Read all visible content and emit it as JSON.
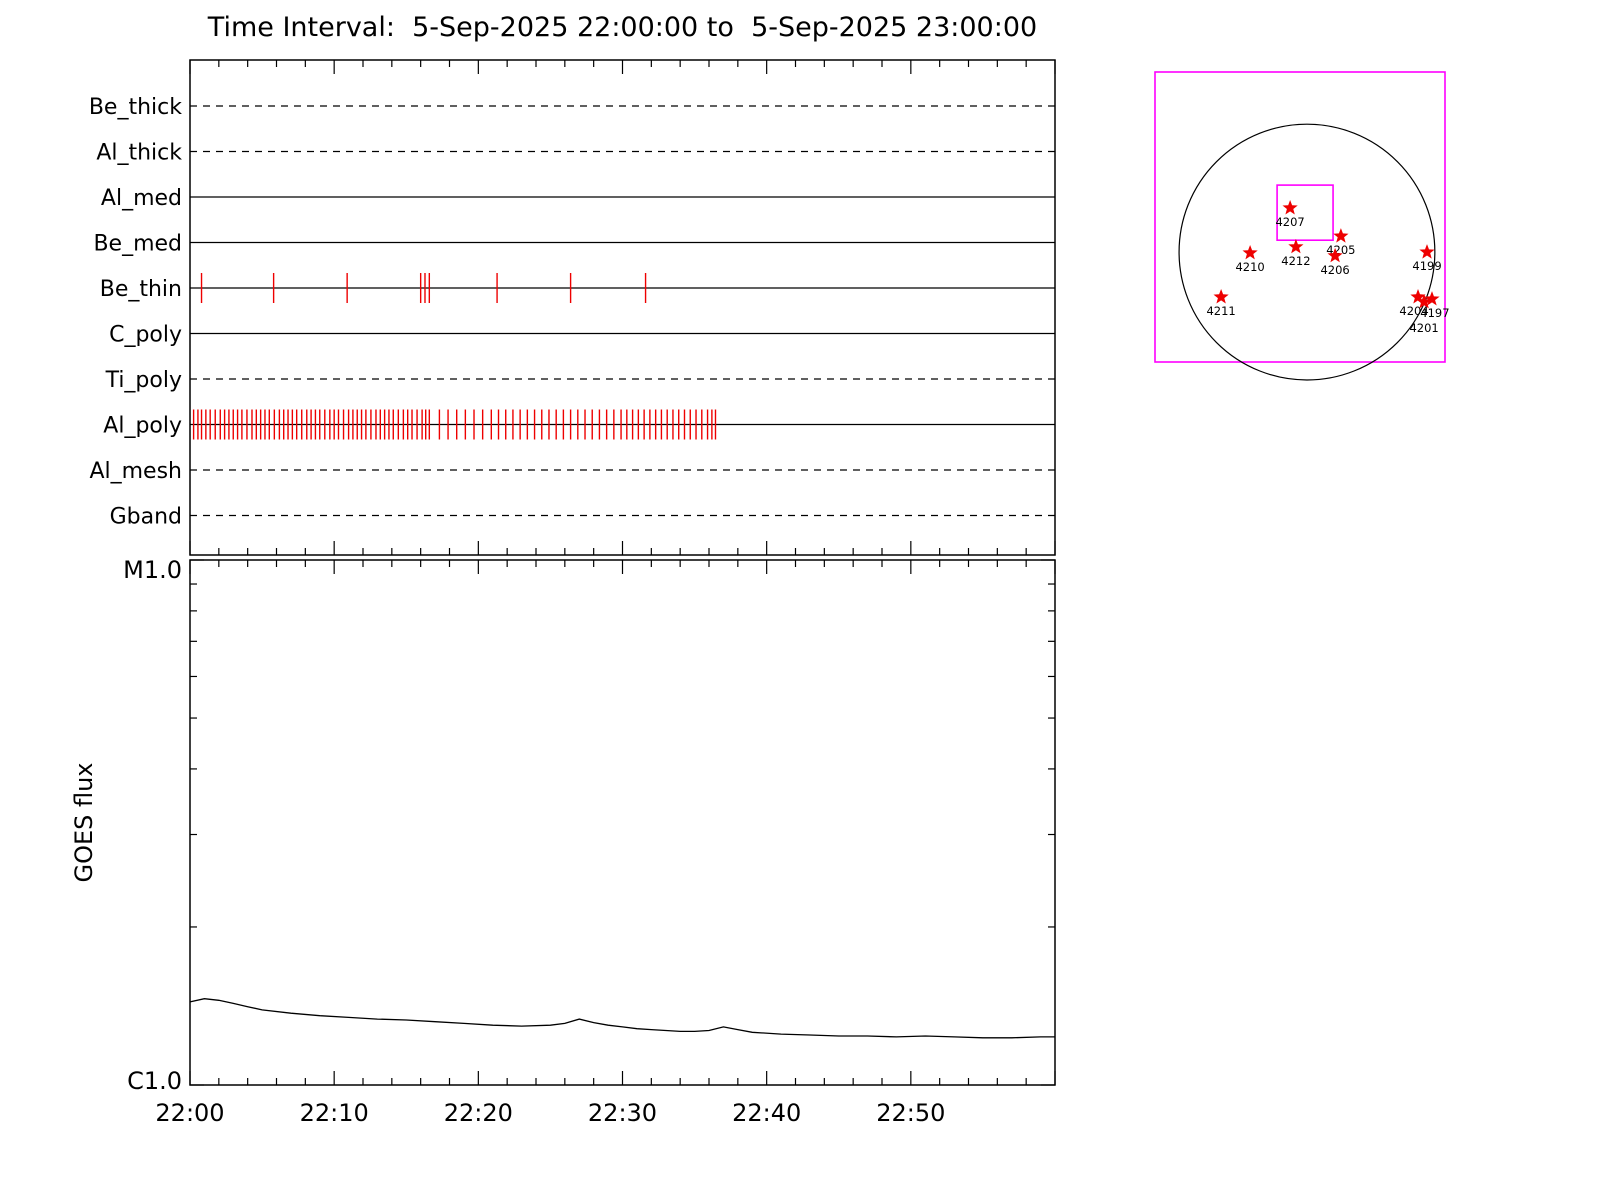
{
  "title": "Time Interval:  5-Sep-2025 22:00:00 to  5-Sep-2025 23:00:00",
  "chart_data": [
    {
      "type": "timeline",
      "title": "XRT filter exposure timeline",
      "tick_color": "#ee0000",
      "x_axis": {
        "start": "22:00",
        "end": "23:00",
        "range_minutes": [
          0,
          60
        ],
        "major_tick_minutes": 10,
        "minor_tick_minutes": 2,
        "labels": [
          "22:00",
          "22:10",
          "22:20",
          "22:30",
          "22:40",
          "22:50"
        ]
      },
      "rows": [
        {
          "label": "Be_thick",
          "line_style": "dashed",
          "tick_times_min": []
        },
        {
          "label": "Al_thick",
          "line_style": "dashed",
          "tick_times_min": []
        },
        {
          "label": "Al_med",
          "line_style": "solid",
          "tick_times_min": []
        },
        {
          "label": "Be_med",
          "line_style": "solid",
          "tick_times_min": []
        },
        {
          "label": "Be_thin",
          "line_style": "solid",
          "tick_times_min": [
            0.8,
            5.8,
            10.9,
            16.0,
            16.3,
            16.6,
            21.3,
            26.4,
            31.6
          ]
        },
        {
          "label": "C_poly",
          "line_style": "solid",
          "tick_times_min": []
        },
        {
          "label": "Ti_poly",
          "line_style": "dashed",
          "tick_times_min": []
        },
        {
          "label": "Al_poly",
          "line_style": "solid",
          "tick_times_min": [
            0.25,
            0.55,
            0.8,
            1.1,
            1.4,
            1.75,
            2.1,
            2.4,
            2.7,
            3.0,
            3.3,
            3.6,
            3.95,
            4.3,
            4.6,
            4.9,
            5.2,
            5.5,
            5.85,
            6.2,
            6.5,
            6.8,
            7.1,
            7.4,
            7.75,
            8.1,
            8.4,
            8.7,
            9.0,
            9.35,
            9.7,
            10.0,
            10.3,
            10.65,
            11.0,
            11.3,
            11.6,
            11.9,
            12.2,
            12.55,
            12.9,
            13.2,
            13.5,
            13.8,
            14.1,
            14.45,
            14.8,
            15.1,
            15.4,
            15.75,
            16.1,
            16.35,
            16.6,
            17.3,
            17.9,
            18.5,
            19.1,
            19.7,
            20.3,
            20.9,
            21.4,
            21.9,
            22.4,
            22.9,
            23.4,
            23.9,
            24.4,
            24.9,
            25.4,
            25.9,
            26.4,
            26.9,
            27.4,
            27.9,
            28.4,
            28.9,
            29.4,
            29.9,
            30.3,
            30.7,
            31.1,
            31.5,
            31.9,
            32.3,
            32.7,
            33.1,
            33.5,
            33.9,
            34.3,
            34.7,
            35.1,
            35.5,
            35.9,
            36.2,
            36.45
          ]
        },
        {
          "label": "Al_mesh",
          "line_style": "dashed",
          "tick_times_min": []
        },
        {
          "label": "Gband",
          "line_style": "dashed",
          "tick_times_min": []
        }
      ]
    },
    {
      "type": "line",
      "ylabel": "GOES flux",
      "y_scale": "log",
      "ylim_labels": [
        "C1.0",
        "M1.0"
      ],
      "ylim_flux": [
        "1e-6",
        "1e-5"
      ],
      "x_axis": {
        "start": "22:00",
        "end": "23:00",
        "range_minutes": [
          0,
          60
        ],
        "major_tick_minutes": 10,
        "minor_tick_minutes": 2,
        "labels": [
          "22:00",
          "22:10",
          "22:20",
          "22:30",
          "22:40",
          "22:50"
        ]
      },
      "series": [
        {
          "name": "GOES flux",
          "x_minutes": [
            0,
            1,
            2,
            3,
            4,
            5,
            7,
            9,
            11,
            13,
            15,
            17,
            19,
            21,
            23,
            25,
            26,
            27,
            28,
            29,
            30,
            31,
            32,
            33,
            34,
            35,
            36,
            37,
            38,
            39,
            41,
            43,
            45,
            47,
            49,
            51,
            53,
            55,
            57,
            59,
            60
          ],
          "flux_c_units": [
            1.44,
            1.46,
            1.45,
            1.43,
            1.41,
            1.39,
            1.37,
            1.355,
            1.345,
            1.335,
            1.33,
            1.32,
            1.31,
            1.3,
            1.295,
            1.3,
            1.31,
            1.335,
            1.315,
            1.3,
            1.29,
            1.28,
            1.275,
            1.27,
            1.265,
            1.265,
            1.27,
            1.29,
            1.275,
            1.26,
            1.25,
            1.245,
            1.24,
            1.24,
            1.235,
            1.24,
            1.235,
            1.23,
            1.23,
            1.235,
            1.235
          ]
        }
      ]
    },
    {
      "type": "scatter",
      "title": "Full-disk pointing map with active regions",
      "frame_color": "#ff00ff",
      "marker_color": "#ee0000",
      "sun_circle_frac": {
        "cx": 0.524,
        "cy": 0.621,
        "r": 0.441
      },
      "fov_box_frac": {
        "x": 0.421,
        "y": 0.39,
        "w": 0.193,
        "h": 0.19
      },
      "regions": [
        {
          "label": "4207",
          "fx": 0.466,
          "fy": 0.469
        },
        {
          "label": "4205",
          "fx": 0.641,
          "fy": 0.566
        },
        {
          "label": "4210",
          "fx": 0.328,
          "fy": 0.624
        },
        {
          "label": "4212",
          "fx": 0.486,
          "fy": 0.603
        },
        {
          "label": "4206",
          "fx": 0.621,
          "fy": 0.634
        },
        {
          "label": "4199",
          "fx": 0.938,
          "fy": 0.621
        },
        {
          "label": "4211",
          "fx": 0.228,
          "fy": 0.776
        },
        {
          "label": "4204",
          "fx": 0.907,
          "fy": 0.776,
          "ldx": -4
        },
        {
          "label": "4197",
          "fx": 0.955,
          "fy": 0.783,
          "ldx": 3
        },
        {
          "label": "4201",
          "fx": 0.928,
          "fy": 0.793,
          "ldy": 30
        }
      ]
    }
  ]
}
